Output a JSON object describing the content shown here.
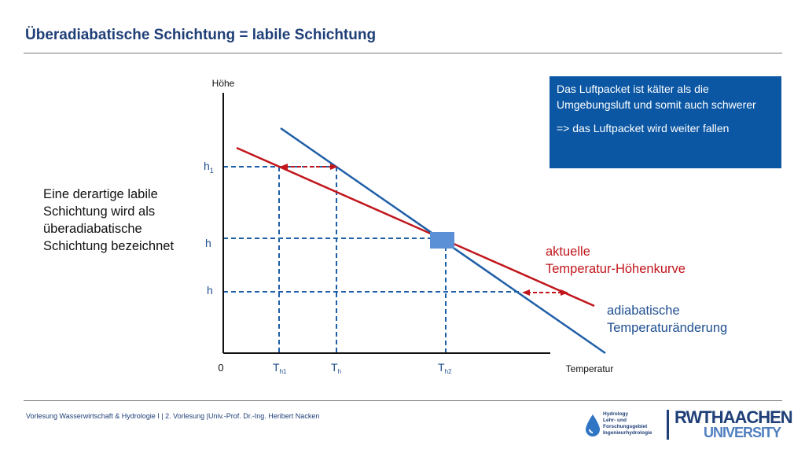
{
  "title": "Überadiabatische Schichtung = labile Schichtung",
  "left_text": "Eine derartige labile Schichtung wird als überadiabatische Schichtung bezeichnet",
  "infobox": {
    "p1": "Das Luftpacket ist kälter als die Umgebungsluft und somit auch schwerer",
    "p2": "=> das Luftpacket wird weiter fallen"
  },
  "diagram": {
    "y_axis_label": "Höhe",
    "x_axis_label": "Temperatur",
    "origin_label": "0",
    "y_ticks": [
      {
        "base": "h",
        "sub": "1"
      },
      {
        "base": "h",
        "sub": ""
      },
      {
        "base": "h",
        "sub": ""
      }
    ],
    "x_ticks": [
      {
        "base": "T",
        "sub": "h1"
      },
      {
        "base": "T",
        "sub": "h"
      },
      {
        "base": "T",
        "sub": "h2"
      }
    ],
    "red_label_1": "aktuelle",
    "red_label_2": "Temperatur-Höhenkurve",
    "blue_label_1": "adiabatische",
    "blue_label_2": "Temperaturänderung"
  },
  "colors": {
    "title": "#1f3f78",
    "red_curve": "#c0161c",
    "blue_curve": "#1f5fa8",
    "infobox": "#0b57a4",
    "parcel": "#5b8fd6"
  },
  "footer": "Vorlesung Wasserwirtschaft & Hydrologie I | 2. Vorlesung |Univ.-Prof. Dr.-Ing. Heribert Nacken",
  "logos": {
    "hydro_lines": [
      "Hydrology",
      "Lehr- und",
      "Forschungsgebiet",
      "Ingenieurhydrologie"
    ],
    "rwth_line1": "RWTHAACHEN",
    "rwth_line2": "UNIVERSITY"
  }
}
